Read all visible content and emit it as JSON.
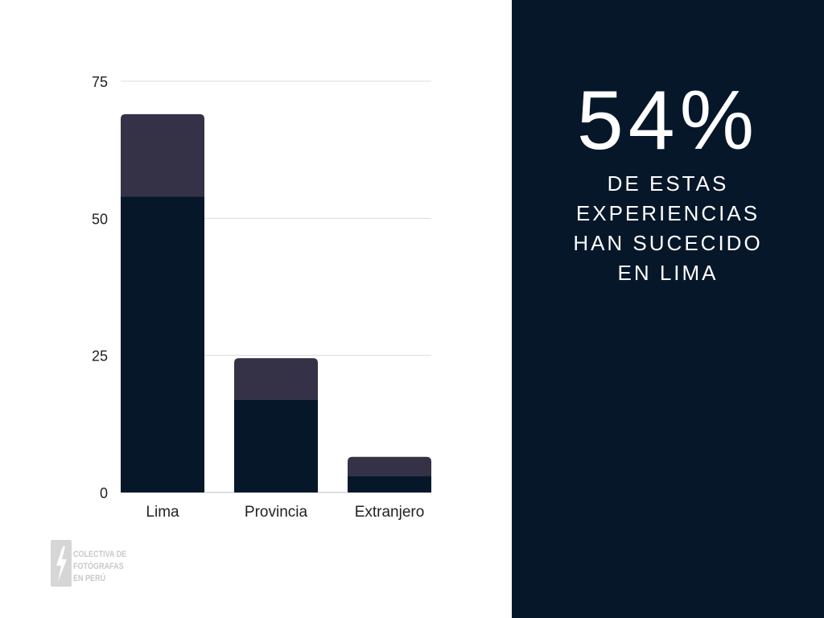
{
  "chart_data": {
    "type": "bar",
    "stacked": true,
    "categories": [
      "Lima",
      "Provincia",
      "Extranjero"
    ],
    "series": [
      {
        "values": [
          54,
          17,
          3
        ],
        "color": "#07172a"
      },
      {
        "values": [
          15,
          7.5,
          3.5
        ],
        "color": "#353247"
      }
    ],
    "yticks": [
      0,
      25,
      50,
      75
    ],
    "ylim": [
      0,
      75
    ],
    "grid": true,
    "legend": "none"
  },
  "stat": {
    "value": "54%",
    "caption_lines": [
      "DE ESTAS",
      "EXPERIENCIAS",
      "HAN SUCECIDO",
      "EN LIMA"
    ]
  },
  "logo": {
    "icon": "lightning-bolt-icon",
    "lines": [
      "COLECTIVA DE",
      "FOTÓGRAFAS",
      "EN PERÚ"
    ]
  }
}
